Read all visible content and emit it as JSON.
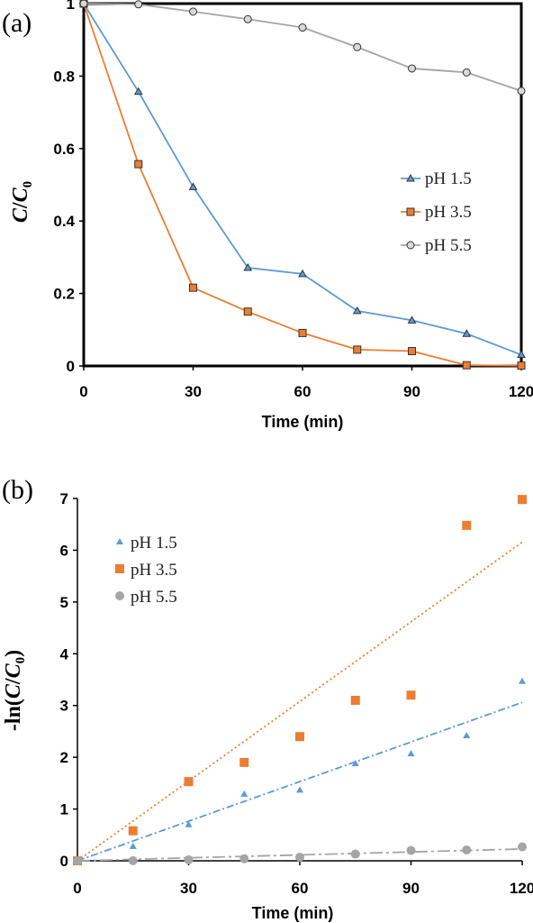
{
  "chart_data": [
    {
      "panel_label": "(a)",
      "type": "line",
      "xlabel": "Time (min)",
      "ylabel": "C/C0",
      "xlim": [
        0,
        120
      ],
      "ylim": [
        0,
        1
      ],
      "xticks": [
        0,
        30,
        60,
        90,
        120
      ],
      "yticks": [
        0,
        0.2,
        0.4,
        0.6,
        0.8,
        1
      ],
      "ytick_labels": [
        "0",
        "0.2",
        "0.4",
        "0.6",
        "0.8",
        "1"
      ],
      "legend_position": "right-center",
      "x": [
        0,
        15,
        30,
        45,
        60,
        75,
        90,
        105,
        120
      ],
      "series": [
        {
          "name": "pH 1.5",
          "color": "#5b9bd5",
          "marker": "triangle",
          "values": [
            1.0,
            0.757,
            0.494,
            0.271,
            0.254,
            0.152,
            0.126,
            0.089,
            0.031
          ]
        },
        {
          "name": "pH 3.5",
          "color": "#ed7d31",
          "marker": "square",
          "values": [
            1.0,
            0.557,
            0.216,
            0.15,
            0.091,
            0.045,
            0.041,
            0.002,
            0.001
          ]
        },
        {
          "name": "pH 5.5",
          "color": "#a5a5a5",
          "marker": "circle",
          "values": [
            1.0,
            0.998,
            0.978,
            0.957,
            0.934,
            0.88,
            0.821,
            0.81,
            0.759
          ]
        }
      ]
    },
    {
      "panel_label": "(b)",
      "type": "scatter",
      "xlabel": "Time (min)",
      "ylabel": "-ln(C/C0)",
      "xlim": [
        0,
        120
      ],
      "ylim": [
        0,
        7
      ],
      "xticks": [
        0,
        30,
        60,
        90,
        120
      ],
      "yticks": [
        0,
        1,
        2,
        3,
        4,
        5,
        6,
        7
      ],
      "ytick_labels": [
        "0",
        "1",
        "2",
        "3",
        "4",
        "5",
        "6",
        "7"
      ],
      "legend_position": "top-left",
      "x": [
        0,
        15,
        30,
        45,
        60,
        75,
        90,
        105,
        120
      ],
      "series": [
        {
          "name": "pH 1.5",
          "color": "#5b9bd5",
          "marker": "triangle",
          "values": [
            0,
            0.28,
            0.7,
            1.29,
            1.37,
            1.88,
            2.07,
            2.42,
            3.47
          ],
          "trendline": {
            "slope": 0.0255,
            "intercept": 0,
            "style": "dash-dot"
          }
        },
        {
          "name": "pH 3.5",
          "color": "#ed7d31",
          "marker": "square",
          "values": [
            0,
            0.58,
            1.53,
            1.9,
            2.4,
            3.1,
            3.2,
            6.48,
            6.98
          ],
          "trendline": {
            "slope": 0.0513,
            "intercept": 0,
            "style": "dotted"
          }
        },
        {
          "name": "pH 5.5",
          "color": "#a5a5a5",
          "marker": "circle",
          "values": [
            0,
            0.002,
            0.02,
            0.04,
            0.07,
            0.13,
            0.2,
            0.21,
            0.27
          ],
          "trendline": {
            "slope": 0.0019,
            "intercept": 0,
            "style": "long-dash-dot"
          }
        }
      ]
    }
  ]
}
